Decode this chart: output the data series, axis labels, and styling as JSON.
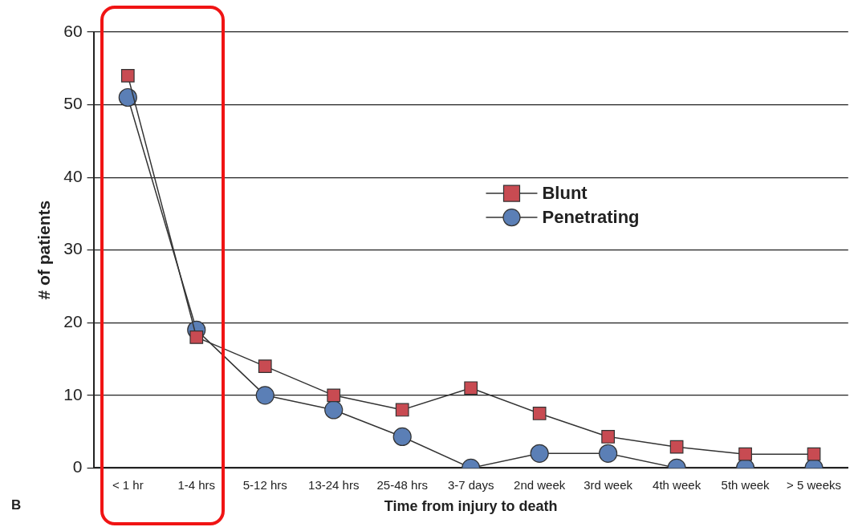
{
  "chart_data": {
    "type": "line",
    "xlabel": "Time from injury to death",
    "ylabel": "# of patients",
    "categories": [
      "< 1 hr",
      "1-4 hrs",
      "5-12 hrs",
      "13-24 hrs",
      "25-48 hrs",
      "3-7 days",
      "2nd week",
      "3rd week",
      "4th week",
      "5th week",
      "> 5 weeks"
    ],
    "series": [
      {
        "name": "Blunt",
        "color": "#c84b52",
        "marker": "square",
        "values": [
          54,
          18,
          14,
          10,
          8,
          11,
          7.5,
          4.3,
          2.9,
          1.9,
          1.9
        ]
      },
      {
        "name": "Penetrating",
        "color": "#5b7fb6",
        "marker": "circle",
        "values": [
          51,
          19,
          10,
          8,
          4.3,
          0,
          2,
          2,
          0,
          0,
          0
        ]
      }
    ],
    "ylim": [
      0,
      60
    ],
    "yticks": [
      0,
      10,
      20,
      30,
      40,
      50,
      60
    ],
    "grid": "y",
    "legend": "center",
    "line_style": "solid",
    "annotations": [
      "B"
    ]
  }
}
